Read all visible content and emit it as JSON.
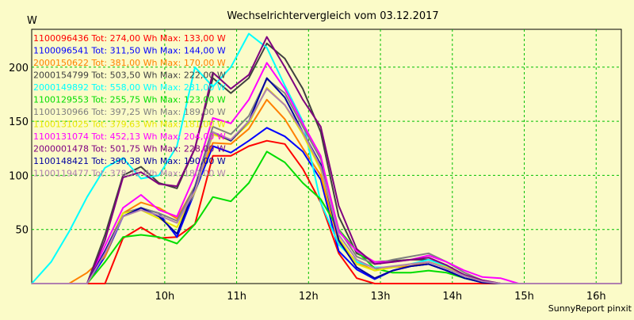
{
  "chart_data": {
    "type": "line",
    "title": "Wechselrichtervergleich vom 03.12.2017",
    "ylabel": "W",
    "xlabel": "",
    "footer": "SunnyReport pinxit",
    "ylim": [
      0,
      235
    ],
    "xlim": [
      8.15,
      16.35
    ],
    "grid": true,
    "legend_position": "top-left",
    "y_ticks": [
      50,
      100,
      150,
      200
    ],
    "x_ticks": [
      {
        "value": 10,
        "label": "10h"
      },
      {
        "value": 11,
        "label": "11h"
      },
      {
        "value": 12,
        "label": "12h"
      },
      {
        "value": 13,
        "label": "13h"
      },
      {
        "value": 14,
        "label": "14h"
      },
      {
        "value": 15,
        "label": "15h"
      },
      {
        "value": 16,
        "label": "16h"
      }
    ],
    "x": [
      8.15,
      8.42,
      8.67,
      8.92,
      9.17,
      9.42,
      9.67,
      9.92,
      10.17,
      10.42,
      10.67,
      10.92,
      11.17,
      11.42,
      11.67,
      11.92,
      12.17,
      12.42,
      12.67,
      12.92,
      13.17,
      13.42,
      13.67,
      13.92,
      14.17,
      14.42,
      14.67,
      14.92,
      15.17,
      15.42,
      15.67,
      15.92,
      16.17,
      16.35
    ],
    "series": [
      {
        "name": "1100096436 Tot: 274,00 Wh Max: 133,00 W",
        "color": "#ff0000",
        "values": [
          0,
          0,
          0,
          0,
          0,
          42,
          52,
          42,
          43,
          55,
          118,
          118,
          127,
          132,
          129,
          106,
          75,
          28,
          5,
          0,
          0,
          0,
          0,
          0,
          0,
          0,
          0,
          0,
          0,
          0,
          0,
          0,
          0,
          0
        ]
      },
      {
        "name": "1100096541 Tot: 311,50 Wh Max: 144,00 W",
        "color": "#0000ff",
        "values": [
          0,
          0,
          0,
          0,
          25,
          62,
          70,
          65,
          43,
          85,
          127,
          121,
          132,
          144,
          136,
          122,
          96,
          30,
          13,
          4,
          12,
          16,
          18,
          12,
          5,
          1,
          0,
          0,
          0,
          0,
          0,
          0,
          0,
          0
        ]
      },
      {
        "name": "2000150622 Tot: 381,00 Wh Max: 170,00 W",
        "color": "#ff8000",
        "values": [
          0,
          0,
          0,
          10,
          25,
          65,
          75,
          70,
          60,
          90,
          130,
          129,
          143,
          170,
          152,
          125,
          100,
          38,
          20,
          12,
          15,
          16,
          20,
          15,
          8,
          2,
          0,
          0,
          0,
          0,
          0,
          0,
          0,
          0
        ]
      },
      {
        "name": "2000154799 Tot: 503,50 Wh Max: 222,00 W",
        "color": "#404040",
        "values": [
          0,
          0,
          0,
          0,
          45,
          100,
          108,
          93,
          88,
          125,
          190,
          176,
          190,
          222,
          208,
          180,
          140,
          62,
          28,
          20,
          21,
          22,
          22,
          17,
          7,
          2,
          0,
          0,
          0,
          0,
          0,
          0,
          0,
          0
        ]
      },
      {
        "name": "2000149892 Tot: 558,00 Wh Max: 231,00 W",
        "color": "#00ffff",
        "values": [
          0,
          20,
          48,
          80,
          107,
          116,
          97,
          100,
          127,
          200,
          182,
          200,
          231,
          218,
          183,
          150,
          75,
          36,
          20,
          15,
          15,
          18,
          22,
          16,
          8,
          2,
          0,
          0,
          0,
          0,
          0,
          0,
          0,
          0
        ]
      },
      {
        "name": "1100129553 Tot: 255,75 Wh Max: 123,00 W",
        "color": "#00dd00",
        "values": [
          0,
          0,
          0,
          0,
          20,
          43,
          45,
          43,
          37,
          55,
          80,
          76,
          93,
          122,
          112,
          93,
          78,
          50,
          30,
          14,
          10,
          10,
          12,
          10,
          5,
          1,
          0,
          0,
          0,
          0,
          0,
          0,
          0,
          0
        ]
      },
      {
        "name": "1100130966 Tot: 397,25 Wh Max: 189,00 W",
        "color": "#808080",
        "values": [
          0,
          0,
          0,
          0,
          30,
          65,
          70,
          65,
          58,
          90,
          145,
          138,
          155,
          189,
          176,
          145,
          115,
          50,
          25,
          18,
          22,
          25,
          28,
          20,
          10,
          3,
          0,
          0,
          0,
          0,
          0,
          0,
          0,
          0
        ]
      },
      {
        "name": "1100131025 Tot: 379,63 Wh Max: 181,00 W",
        "color": "#e8e800",
        "values": [
          0,
          0,
          0,
          0,
          28,
          65,
          68,
          60,
          52,
          85,
          138,
          132,
          148,
          181,
          165,
          138,
          105,
          42,
          18,
          12,
          15,
          18,
          20,
          15,
          7,
          2,
          0,
          0,
          0,
          0,
          0,
          0,
          0,
          0
        ]
      },
      {
        "name": "1100131074 Tot: 452,13 Wh Max: 204,00 W",
        "color": "#ff00ff",
        "values": [
          0,
          0,
          0,
          0,
          35,
          70,
          82,
          68,
          62,
          100,
          153,
          148,
          170,
          204,
          180,
          148,
          118,
          48,
          30,
          20,
          20,
          22,
          26,
          20,
          12,
          6,
          5,
          0,
          0,
          0,
          0,
          0,
          0,
          0
        ]
      },
      {
        "name": "2000001478 Tot: 501,75 Wh Max: 228,00 W",
        "color": "#800080",
        "values": [
          0,
          0,
          0,
          0,
          40,
          98,
          103,
          92,
          90,
          125,
          195,
          180,
          193,
          228,
          200,
          170,
          145,
          72,
          32,
          18,
          20,
          22,
          24,
          17,
          8,
          3,
          0,
          0,
          0,
          0,
          0,
          0,
          0,
          0
        ]
      },
      {
        "name": "1100148421 Tot: 390,38 Wh Max: 190,00 W",
        "color": "#0000a0",
        "values": [
          0,
          0,
          0,
          0,
          30,
          62,
          70,
          62,
          46,
          88,
          140,
          132,
          150,
          190,
          172,
          140,
          110,
          40,
          15,
          5,
          12,
          16,
          18,
          12,
          5,
          1,
          0,
          0,
          0,
          0,
          0,
          0,
          0,
          0
        ]
      },
      {
        "name": "1100119477 Tot: 378,75 Wh Max: 180,00 W",
        "color": "#b080b0",
        "values": [
          0,
          0,
          0,
          0,
          28,
          62,
          68,
          63,
          56,
          86,
          140,
          133,
          150,
          180,
          165,
          140,
          108,
          45,
          22,
          14,
          16,
          18,
          20,
          14,
          7,
          2,
          0,
          0,
          0,
          0,
          0,
          0,
          0,
          0
        ]
      }
    ]
  }
}
